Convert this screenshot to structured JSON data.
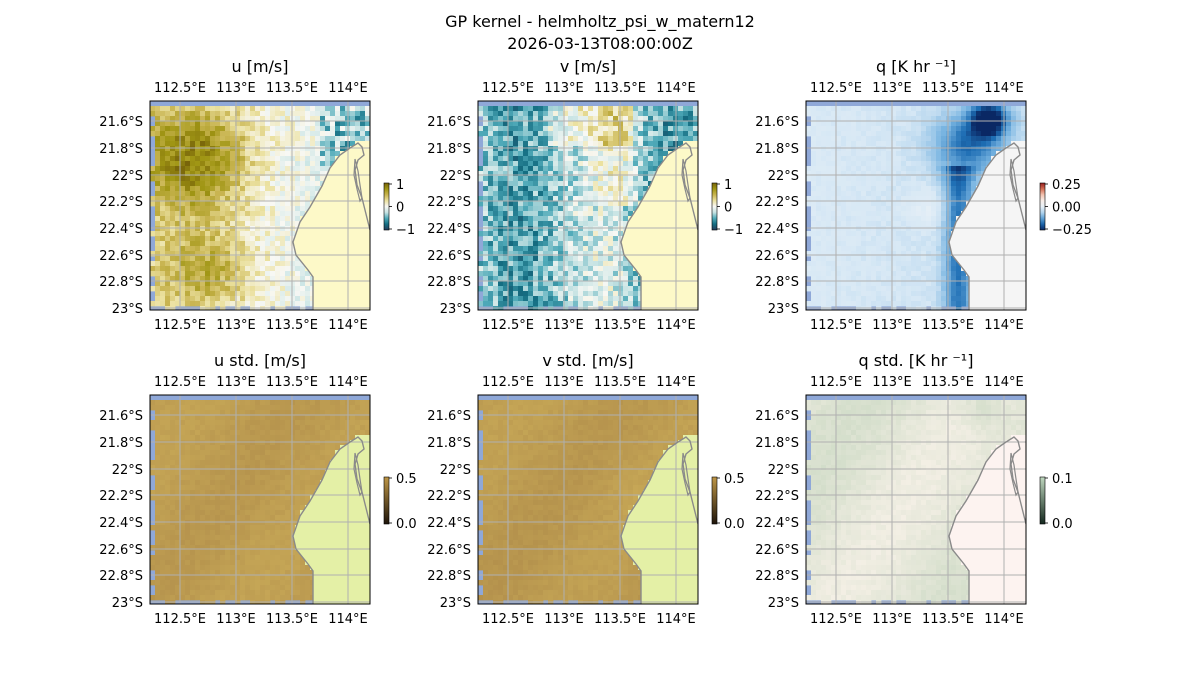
{
  "figure": {
    "title_line1": "GP kernel - helmholtz_psi_w_matern12",
    "title_line2": "2026-03-13T08:00:00Z"
  },
  "colors": {
    "ocean_border": "#8fa8d8",
    "land_fill": "#fdf9c8",
    "land_fill_std": "#e4f0a6",
    "land_fill_q": "#f5f5f5",
    "land_fill_qstd": "#fdf3f0",
    "coast": "#8a8a8a",
    "grid": "#b0b0b0"
  },
  "chart_data": [
    {
      "type": "heatmap",
      "title": "u [m/s]",
      "cmap": "yellow-brown to white to teal",
      "x_ticks": [
        "112.5°E",
        "113°E",
        "113.5°E",
        "114°E"
      ],
      "y_ticks": [
        "21.6°S",
        "21.8°S",
        "22°S",
        "22.2°S",
        "22.4°S",
        "22.6°S",
        "22.8°S",
        "23°S"
      ],
      "xlim": [
        112.45,
        114.2
      ],
      "ylim": [
        -23.0,
        -21.45
      ],
      "colorbar": {
        "ticks": [
          "1",
          "0",
          "−1"
        ],
        "range": [
          -1,
          1
        ]
      }
    },
    {
      "type": "heatmap",
      "title": "v [m/s]",
      "cmap": "yellow-brown to white to teal",
      "x_ticks": [
        "112.5°E",
        "113°E",
        "113.5°E",
        "114°E"
      ],
      "y_ticks": [
        "21.6°S",
        "21.8°S",
        "22°S",
        "22.2°S",
        "22.4°S",
        "22.6°S",
        "22.8°S",
        "23°S"
      ],
      "xlim": [
        112.45,
        114.2
      ],
      "ylim": [
        -23.0,
        -21.45
      ],
      "colorbar": {
        "ticks": [
          "1",
          "0",
          "−1"
        ],
        "range": [
          -1,
          1
        ]
      }
    },
    {
      "type": "heatmap",
      "title": "q [K hr ⁻¹]",
      "cmap": "blue to white to red",
      "x_ticks": [
        "112.5°E",
        "113°E",
        "113.5°E",
        "114°E"
      ],
      "y_ticks": [
        "21.6°S",
        "21.8°S",
        "22°S",
        "22.2°S",
        "22.4°S",
        "22.6°S",
        "22.8°S",
        "23°S"
      ],
      "xlim": [
        112.45,
        114.2
      ],
      "ylim": [
        -23.0,
        -21.45
      ],
      "colorbar": {
        "ticks": [
          "0.25",
          "0.00",
          "−0.25"
        ],
        "range": [
          -0.35,
          0.35
        ]
      }
    },
    {
      "type": "heatmap",
      "title": "u std. [m/s]",
      "cmap": "dark to yellow-brown",
      "x_ticks": [
        "112.5°E",
        "113°E",
        "113.5°E",
        "114°E"
      ],
      "y_ticks": [
        "21.6°S",
        "21.8°S",
        "22°S",
        "22.2°S",
        "22.4°S",
        "22.6°S",
        "22.8°S",
        "23°S"
      ],
      "xlim": [
        112.45,
        114.2
      ],
      "ylim": [
        -23.0,
        -21.45
      ],
      "colorbar": {
        "ticks": [
          "0.5",
          "0.0"
        ],
        "range": [
          0,
          0.5
        ]
      }
    },
    {
      "type": "heatmap",
      "title": "v std. [m/s]",
      "cmap": "dark to yellow-brown",
      "x_ticks": [
        "112.5°E",
        "113°E",
        "113.5°E",
        "114°E"
      ],
      "y_ticks": [
        "21.6°S",
        "21.8°S",
        "22°S",
        "22.2°S",
        "22.4°S",
        "22.6°S",
        "22.8°S",
        "23°S"
      ],
      "xlim": [
        112.45,
        114.2
      ],
      "ylim": [
        -23.0,
        -21.45
      ],
      "colorbar": {
        "ticks": [
          "0.5",
          "0.0"
        ],
        "range": [
          0,
          0.5
        ]
      }
    },
    {
      "type": "heatmap",
      "title": "q std. [K hr ⁻¹]",
      "cmap": "dark green to pale",
      "x_ticks": [
        "112.5°E",
        "113°E",
        "113.5°E",
        "114°E"
      ],
      "y_ticks": [
        "21.6°S",
        "21.8°S",
        "22°S",
        "22.2°S",
        "22.4°S",
        "22.6°S",
        "22.8°S",
        "23°S"
      ],
      "xlim": [
        112.45,
        114.2
      ],
      "ylim": [
        -23.0,
        -21.45
      ],
      "colorbar": {
        "ticks": [
          "0.1",
          "0.0"
        ],
        "range": [
          0,
          0.12
        ]
      }
    }
  ]
}
